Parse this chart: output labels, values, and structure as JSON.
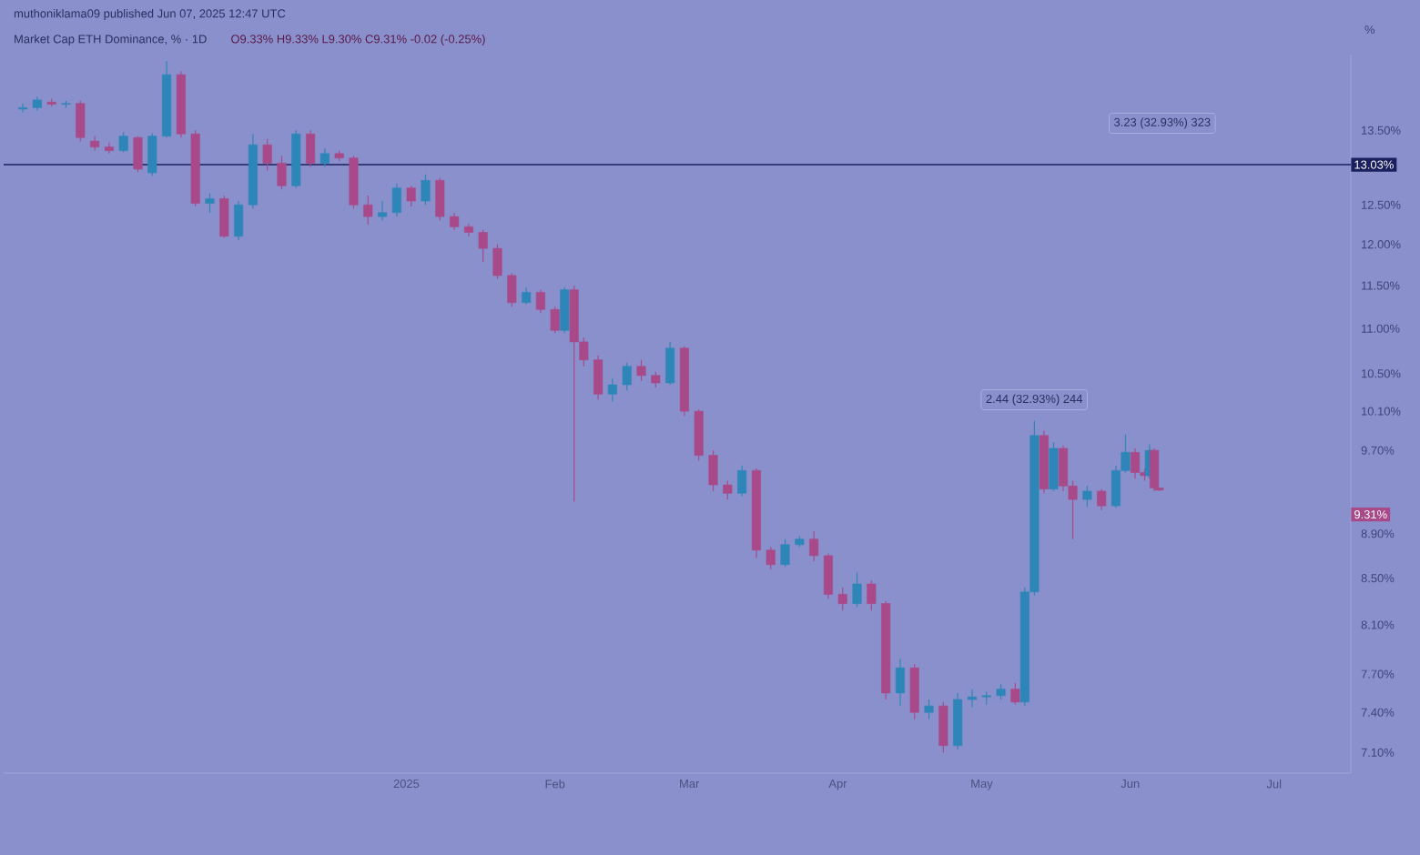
{
  "chart_data": {
    "type": "candlestick",
    "title": "Market Cap ETH Dominance, % · 1D",
    "subtitle": "O9.33% H9.33% L9.30% C9.31% -0.02 (-0.25%)",
    "ylabel": "%",
    "log": true,
    "x": [
      "2024-10-13",
      "2024-10-16",
      "2024-10-19",
      "2024-10-22",
      "2024-10-25",
      "2024-10-28",
      "2024-10-31",
      "2024-11-03",
      "2024-11-06",
      "2024-11-09",
      "2024-11-12",
      "2024-11-15",
      "2024-11-18",
      "2024-11-21",
      "2024-11-24",
      "2024-11-27",
      "2024-11-30",
      "2024-12-03",
      "2024-12-06",
      "2024-12-09",
      "2024-12-12",
      "2024-12-15",
      "2024-12-18",
      "2024-12-21",
      "2024-12-24",
      "2024-12-27",
      "2024-12-30",
      "2025-01-02",
      "2025-01-05",
      "2025-01-08",
      "2025-01-11",
      "2025-01-14",
      "2025-01-17",
      "2025-01-20",
      "2025-01-23",
      "2025-01-26",
      "2025-01-29",
      "2025-02-01",
      "2025-02-03",
      "2025-02-05",
      "2025-02-07",
      "2025-02-10",
      "2025-02-13",
      "2025-02-16",
      "2025-02-19",
      "2025-02-22",
      "2025-02-25",
      "2025-02-28",
      "2025-03-03",
      "2025-03-06",
      "2025-03-09",
      "2025-03-12",
      "2025-03-15",
      "2025-03-18",
      "2025-03-21",
      "2025-03-24",
      "2025-03-27",
      "2025-03-30",
      "2025-04-02",
      "2025-04-05",
      "2025-04-08",
      "2025-04-11",
      "2025-04-14",
      "2025-04-17",
      "2025-04-20",
      "2025-04-23",
      "2025-04-26",
      "2025-04-29",
      "2025-05-02",
      "2025-05-05",
      "2025-05-08",
      "2025-05-10",
      "2025-05-12",
      "2025-05-14",
      "2025-05-16",
      "2025-05-18",
      "2025-05-20",
      "2025-05-23",
      "2025-05-26",
      "2025-05-29",
      "2025-05-31",
      "2025-06-02",
      "2025-06-04",
      "2025-06-05",
      "2025-06-06",
      "2025-06-07"
    ],
    "ohlc": [
      [
        13.8,
        13.88,
        13.75,
        13.82
      ],
      [
        13.82,
        13.98,
        13.78,
        13.93
      ],
      [
        13.9,
        13.95,
        13.84,
        13.87
      ],
      [
        13.87,
        13.92,
        13.82,
        13.88
      ],
      [
        13.88,
        13.92,
        13.35,
        13.4
      ],
      [
        13.35,
        13.42,
        13.22,
        13.27
      ],
      [
        13.27,
        13.33,
        13.18,
        13.22
      ],
      [
        13.22,
        13.48,
        13.2,
        13.42
      ],
      [
        13.4,
        13.42,
        12.93,
        12.97
      ],
      [
        12.92,
        13.46,
        12.88,
        13.42
      ],
      [
        13.42,
        14.5,
        13.4,
        14.3
      ],
      [
        14.3,
        14.35,
        13.4,
        13.45
      ],
      [
        13.45,
        13.5,
        12.48,
        12.52
      ],
      [
        12.52,
        12.65,
        12.4,
        12.58
      ],
      [
        12.58,
        12.62,
        12.08,
        12.1
      ],
      [
        12.1,
        12.55,
        12.05,
        12.5
      ],
      [
        12.5,
        13.45,
        12.45,
        13.3
      ],
      [
        13.3,
        13.38,
        12.95,
        13.05
      ],
      [
        13.05,
        13.15,
        12.7,
        12.75
      ],
      [
        12.75,
        13.5,
        12.72,
        13.45
      ],
      [
        13.45,
        13.5,
        13.0,
        13.05
      ],
      [
        13.05,
        13.25,
        13.0,
        13.18
      ],
      [
        13.18,
        13.22,
        13.08,
        13.12
      ],
      [
        13.12,
        13.15,
        12.45,
        12.5
      ],
      [
        12.5,
        12.62,
        12.25,
        12.35
      ],
      [
        12.35,
        12.55,
        12.3,
        12.4
      ],
      [
        12.4,
        12.78,
        12.35,
        12.72
      ],
      [
        12.72,
        12.75,
        12.48,
        12.55
      ],
      [
        12.55,
        12.9,
        12.5,
        12.82
      ],
      [
        12.82,
        12.85,
        12.3,
        12.35
      ],
      [
        12.35,
        12.4,
        12.18,
        12.22
      ],
      [
        12.22,
        12.26,
        12.1,
        12.15
      ],
      [
        12.15,
        12.18,
        11.78,
        11.95
      ],
      [
        11.95,
        12.0,
        11.58,
        11.62
      ],
      [
        11.62,
        11.65,
        11.25,
        11.3
      ],
      [
        11.3,
        11.48,
        11.28,
        11.42
      ],
      [
        11.42,
        11.45,
        11.18,
        11.22
      ],
      [
        11.22,
        11.25,
        10.95,
        10.98
      ],
      [
        10.98,
        11.48,
        10.95,
        11.45
      ],
      [
        11.45,
        11.5,
        9.2,
        10.85
      ],
      [
        10.85,
        10.9,
        10.58,
        10.65
      ],
      [
        10.65,
        10.7,
        10.22,
        10.28
      ],
      [
        10.28,
        10.45,
        10.2,
        10.38
      ],
      [
        10.38,
        10.62,
        10.32,
        10.58
      ],
      [
        10.58,
        10.65,
        10.42,
        10.48
      ],
      [
        10.48,
        10.52,
        10.35,
        10.4
      ],
      [
        10.4,
        10.85,
        10.38,
        10.78
      ],
      [
        10.78,
        10.8,
        10.05,
        10.1
      ],
      [
        10.1,
        10.12,
        9.6,
        9.65
      ],
      [
        9.65,
        9.7,
        9.3,
        9.36
      ],
      [
        9.36,
        9.4,
        9.22,
        9.28
      ],
      [
        9.28,
        9.55,
        9.25,
        9.5
      ],
      [
        9.5,
        9.52,
        8.68,
        8.75
      ],
      [
        8.75,
        8.78,
        8.58,
        8.62
      ],
      [
        8.62,
        8.85,
        8.6,
        8.8
      ],
      [
        8.8,
        8.88,
        8.78,
        8.85
      ],
      [
        8.85,
        8.92,
        8.65,
        8.7
      ],
      [
        8.7,
        8.72,
        8.32,
        8.36
      ],
      [
        8.36,
        8.42,
        8.22,
        8.28
      ],
      [
        8.28,
        8.55,
        8.25,
        8.45
      ],
      [
        8.45,
        8.48,
        8.22,
        8.28
      ],
      [
        8.28,
        8.3,
        7.5,
        7.55
      ],
      [
        7.55,
        7.82,
        7.45,
        7.75
      ],
      [
        7.75,
        7.78,
        7.35,
        7.4
      ],
      [
        7.4,
        7.5,
        7.35,
        7.45
      ],
      [
        7.45,
        7.48,
        7.1,
        7.15
      ],
      [
        7.15,
        7.55,
        7.12,
        7.5
      ],
      [
        7.5,
        7.58,
        7.44,
        7.52
      ],
      [
        7.52,
        7.56,
        7.46,
        7.53
      ],
      [
        7.53,
        7.62,
        7.5,
        7.58
      ],
      [
        7.58,
        7.63,
        7.46,
        7.48
      ],
      [
        7.48,
        8.42,
        7.45,
        8.38
      ],
      [
        8.38,
        10.0,
        8.35,
        9.85
      ],
      [
        9.85,
        9.9,
        9.28,
        9.32
      ],
      [
        9.32,
        9.78,
        9.3,
        9.72
      ],
      [
        9.72,
        9.75,
        9.3,
        9.35
      ],
      [
        9.35,
        9.4,
        8.85,
        9.22
      ],
      [
        9.22,
        9.35,
        9.15,
        9.3
      ],
      [
        9.3,
        9.32,
        9.12,
        9.16
      ],
      [
        9.16,
        9.55,
        9.14,
        9.5
      ],
      [
        9.5,
        9.86,
        9.48,
        9.68
      ],
      [
        9.68,
        9.72,
        9.42,
        9.48
      ],
      [
        9.48,
        9.52,
        9.4,
        9.45
      ],
      [
        9.45,
        9.76,
        9.42,
        9.7
      ],
      [
        9.7,
        9.72,
        9.3,
        9.33
      ],
      [
        9.33,
        9.33,
        9.3,
        9.31
      ]
    ],
    "colors": [
      "#2e86b8",
      "#2e86b8",
      "#a84a8a",
      "#2e86b8",
      "#a84a8a",
      "#a84a8a",
      "#a84a8a",
      "#2e86b8",
      "#a84a8a",
      "#2e86b8",
      "#2e86b8",
      "#a84a8a",
      "#a84a8a",
      "#2e86b8",
      "#a84a8a",
      "#2e86b8",
      "#2e86b8",
      "#a84a8a",
      "#a84a8a",
      "#2e86b8",
      "#a84a8a",
      "#2e86b8",
      "#a84a8a",
      "#a84a8a",
      "#a84a8a",
      "#2e86b8",
      "#2e86b8",
      "#a84a8a",
      "#2e86b8",
      "#a84a8a",
      "#a84a8a",
      "#a84a8a",
      "#a84a8a",
      "#a84a8a",
      "#a84a8a",
      "#2e86b8",
      "#a84a8a",
      "#a84a8a",
      "#2e86b8",
      "#a84a8a",
      "#a84a8a",
      "#a84a8a",
      "#2e86b8",
      "#2e86b8",
      "#a84a8a",
      "#a84a8a",
      "#2e86b8",
      "#a84a8a",
      "#a84a8a",
      "#a84a8a",
      "#a84a8a",
      "#2e86b8",
      "#a84a8a",
      "#a84a8a",
      "#2e86b8",
      "#2e86b8",
      "#a84a8a",
      "#a84a8a",
      "#a84a8a",
      "#2e86b8",
      "#a84a8a",
      "#a84a8a",
      "#2e86b8",
      "#a84a8a",
      "#2e86b8",
      "#a84a8a",
      "#2e86b8",
      "#2e86b8",
      "#2e86b8",
      "#2e86b8",
      "#a84a8a",
      "#2e86b8",
      "#2e86b8",
      "#a84a8a",
      "#2e86b8",
      "#a84a8a",
      "#a84a8a",
      "#2e86b8",
      "#a84a8a",
      "#2e86b8",
      "#2e86b8",
      "#a84a8a",
      "#a84a8a",
      "#2e86b8",
      "#a84a8a",
      "#a84a8a"
    ],
    "xlim": [
      "2024-10-09",
      "2025-07-17"
    ],
    "xticks": [
      {
        "value": "2025-01-01",
        "label": "2025"
      },
      {
        "value": "2025-02-01",
        "label": "Feb"
      },
      {
        "value": "2025-03-01",
        "label": "Mar"
      },
      {
        "value": "2025-04-01",
        "label": "Apr"
      },
      {
        "value": "2025-05-01",
        "label": "May"
      },
      {
        "value": "2025-06-01",
        "label": "Jun"
      },
      {
        "value": "2025-07-01",
        "label": "Jul"
      }
    ],
    "ylim": [
      6.95,
      14.6
    ],
    "yticks": [
      {
        "value": 13.5,
        "label": "13.50%"
      },
      {
        "value": 12.5,
        "label": "12.50%"
      },
      {
        "value": 12.0,
        "label": "12.00%"
      },
      {
        "value": 11.5,
        "label": "11.50%"
      },
      {
        "value": 11.0,
        "label": "11.00%"
      },
      {
        "value": 10.5,
        "label": "10.50%"
      },
      {
        "value": 10.1,
        "label": "10.10%"
      },
      {
        "value": 9.7,
        "label": "9.70%"
      },
      {
        "value": 8.9,
        "label": "8.90%"
      },
      {
        "value": 8.5,
        "label": "8.50%"
      },
      {
        "value": 8.1,
        "label": "8.10%"
      },
      {
        "value": 7.7,
        "label": "7.70%"
      },
      {
        "value": 7.4,
        "label": "7.40%"
      },
      {
        "value": 7.1,
        "label": "7.10%"
      }
    ],
    "ref_lines": [
      {
        "axis": "y",
        "value": 13.03,
        "label": "13.03%",
        "color": "#1a1f5e"
      }
    ],
    "annotations": [
      "muthoniklama09 published Jun 07, 2025 12:47 UTC",
      "2.44 (32.93%) 244",
      "3.23 (32.93%) 323",
      "9.31%"
    ]
  }
}
